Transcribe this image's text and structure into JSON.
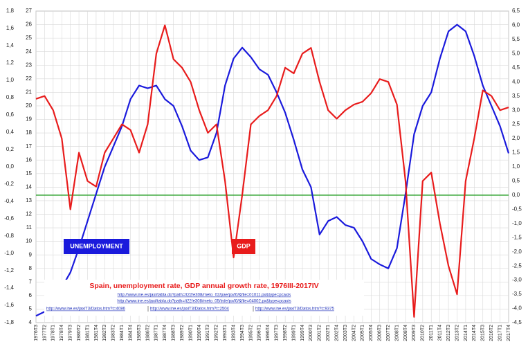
{
  "chart_data": {
    "type": "line",
    "title": "Spain, unemployment rate, GDP annual growth rate, 1976III-2017IV",
    "sources": [
      "http://www.ine.es/jaxi/tabla.do?path=/t22/e308/meto_02/pae/px/l0/&file=01011.px&type=pcaxis",
      "http://www.ine.es/jaxi/tabla.do?path=/t22/e308/meto_05/trde/px/l0/&file=04002.px&type=pcaxis",
      "http://www.ine.es/jaxiT3/Datos.htm?t=4086",
      "http://www.ine.es/jaxiT3/Datos.htm?t=2504",
      "http://www.ine.es/jaxiT3/Datos.htm?t=9375"
    ],
    "categories": [
      "1976T3",
      "1977T2",
      "1978T1",
      "1978T4",
      "1979T3",
      "1980T2",
      "1981T1",
      "1981T4",
      "1982T3",
      "1983T2",
      "1984T1",
      "1984T4",
      "1985T3",
      "1986T2",
      "1987T1",
      "1987T4",
      "1988T3",
      "1989T2",
      "1990T1",
      "1990T4",
      "1991T3",
      "1992T2",
      "1993T1",
      "1993T4",
      "1994T3",
      "1995T2",
      "1996T1",
      "1996T4",
      "1997T3",
      "1998T2",
      "1999T1",
      "1999T4",
      "2000T3",
      "2001T2",
      "2002T1",
      "2002T4",
      "2003T3",
      "2004T2",
      "2005T1",
      "2005T4",
      "2006T3",
      "2007T2",
      "2008T1",
      "2008T4",
      "2009T3",
      "2010T2",
      "2011T1",
      "2011T4",
      "2012T3",
      "2013T2",
      "2014T1",
      "2014T4",
      "2015T3",
      "2016T2",
      "2017T1",
      "2017T4"
    ],
    "series": [
      {
        "name": "UNEMPLOYMENT",
        "color": "#1a1adc",
        "axis": "y",
        "values": [
          4.5,
          4.8,
          5.5,
          6.6,
          7.7,
          9.5,
          11.5,
          13.5,
          15.5,
          17,
          18.5,
          20.5,
          21.5,
          21.3,
          21.5,
          20.5,
          20,
          18.5,
          16.7,
          16,
          16.2,
          18,
          21.5,
          23.5,
          24.3,
          23.6,
          22.7,
          22.3,
          21,
          19.5,
          17.5,
          15.3,
          14,
          10.5,
          11.5,
          11.8,
          11.2,
          11,
          10,
          8.7,
          8.3,
          8,
          9.5,
          13.5,
          17.9,
          20,
          21,
          23.5,
          25.5,
          26,
          25.5,
          23.7,
          21.5,
          20,
          18.5,
          16.5
        ]
      },
      {
        "name": "GDP",
        "color": "#e81c1c",
        "axis": "y2",
        "values": [
          3.4,
          3.5,
          3.0,
          2.0,
          -0.5,
          1.5,
          0.5,
          0.3,
          1.5,
          2.0,
          2.5,
          2.3,
          1.5,
          2.5,
          5.0,
          6.0,
          4.8,
          4.5,
          4.0,
          3.0,
          2.2,
          2.5,
          0.5,
          -2.2,
          0,
          2.5,
          2.8,
          3.0,
          3.5,
          4.5,
          4.3,
          5.0,
          5.2,
          4.0,
          3.0,
          2.7,
          3.0,
          3.2,
          3.3,
          3.6,
          4.1,
          4.0,
          3.2,
          0.5,
          -4.3,
          0.5,
          0.8,
          -1,
          -2.5,
          -3.5,
          0.5,
          2.0,
          3.7,
          3.5,
          3.0,
          3.1
        ]
      }
    ],
    "ylim": [
      4,
      27
    ],
    "yticks": [
      27,
      26,
      25,
      24,
      23,
      22,
      21,
      20,
      19,
      18,
      17,
      16,
      15,
      14,
      13,
      12,
      11,
      10,
      9,
      8,
      7,
      6,
      5,
      4
    ],
    "y2lim": [
      -4.5,
      6.5
    ],
    "y2ticks": [
      {
        "value": 6.5,
        "label": "6,5"
      },
      {
        "value": 6,
        "label": "6,0"
      },
      {
        "value": 5.5,
        "label": "5,5"
      },
      {
        "value": 5,
        "label": "5,0"
      },
      {
        "value": 4.5,
        "label": "4,5"
      },
      {
        "value": 4,
        "label": "4,0"
      },
      {
        "value": 3.5,
        "label": "3,5"
      },
      {
        "value": 3,
        "label": "3,0"
      },
      {
        "value": 2.5,
        "label": "2,5"
      },
      {
        "value": 2,
        "label": "2,0"
      },
      {
        "value": 1.5,
        "label": "1,5"
      },
      {
        "value": 1,
        "label": "1,0"
      },
      {
        "value": 0.5,
        "label": "0,5"
      },
      {
        "value": 0,
        "label": "0,0"
      },
      {
        "value": -0.5,
        "label": "-0,5"
      },
      {
        "value": -1,
        "label": "-1,0"
      },
      {
        "value": -1.5,
        "label": "-1,5"
      },
      {
        "value": -2,
        "label": "-2,0"
      },
      {
        "value": -2.5,
        "label": "-2,5"
      },
      {
        "value": -3,
        "label": "-3,0"
      },
      {
        "value": -3.5,
        "label": "-3,5"
      },
      {
        "value": -4,
        "label": "-4,0"
      },
      {
        "value": -4.5,
        "label": "-4,5"
      }
    ],
    "y3lim": [
      -1.8,
      1.8
    ],
    "y3ticks": [
      {
        "value": 1.8,
        "label": "1,8"
      },
      {
        "value": 1.6,
        "label": "1,6"
      },
      {
        "value": 1.4,
        "label": "1,4"
      },
      {
        "value": 1.2,
        "label": "1,2"
      },
      {
        "value": 1,
        "label": "1,0"
      },
      {
        "value": 0.8,
        "label": "0,8"
      },
      {
        "value": 0.6,
        "label": "0,6"
      },
      {
        "value": 0.4,
        "label": "0,4"
      },
      {
        "value": 0.2,
        "label": "0,2"
      },
      {
        "value": 0,
        "label": "0,0"
      },
      {
        "value": -0.2,
        "label": "-0,2"
      },
      {
        "value": -0.4,
        "label": "-0,4"
      },
      {
        "value": -0.6,
        "label": "-0,6"
      },
      {
        "value": -0.8,
        "label": "-0,8"
      },
      {
        "value": -1,
        "label": "-1,0"
      },
      {
        "value": -1.2,
        "label": "-1,2"
      },
      {
        "value": -1.4,
        "label": "-1,4"
      },
      {
        "value": -1.6,
        "label": "-1,6"
      },
      {
        "value": -1.8,
        "label": "-1,8"
      }
    ],
    "reference_line": {
      "axis": "y2",
      "value": 0,
      "color": "#2aa02a"
    },
    "grid": true
  }
}
